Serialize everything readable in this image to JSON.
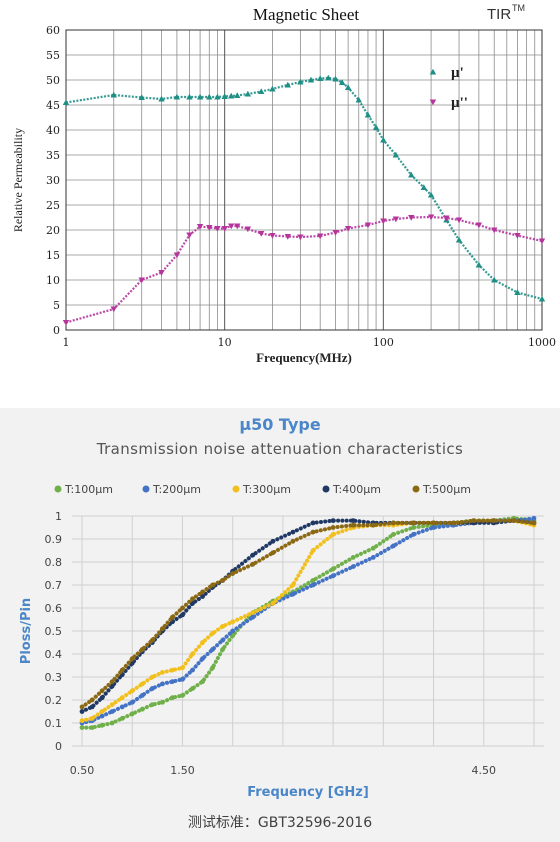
{
  "chart_data": [
    {
      "type": "scatter",
      "title": "Magnetic Sheet",
      "brand": "TIR",
      "brand_sup": "TM",
      "xlabel": "Frequency(MHz)",
      "ylabel": "Relative Permeability",
      "xscale": "log",
      "xlim": [
        1,
        1000
      ],
      "ylim": [
        0,
        60
      ],
      "xticks": [
        "1",
        "10",
        "100",
        "1000"
      ],
      "yticks": [
        "0",
        "5",
        "10",
        "15",
        "20",
        "25",
        "30",
        "35",
        "40",
        "45",
        "50",
        "55",
        "60"
      ],
      "grid": true,
      "legend_position": "top-right",
      "colors": {
        "mu1": "#1f8f86",
        "mu2": "#b5359c"
      },
      "series": [
        {
          "name": "µ'",
          "marker": "triangle-up",
          "x": [
            1,
            2,
            3,
            4,
            5,
            6,
            7,
            8,
            9,
            10,
            11,
            12,
            14,
            17,
            20,
            25,
            30,
            35,
            40,
            45,
            50,
            55,
            60,
            70,
            80,
            90,
            100,
            120,
            150,
            180,
            200,
            250,
            300,
            400,
            500,
            700,
            1000
          ],
          "y": [
            45.5,
            47,
            46.5,
            46.2,
            46.6,
            46.6,
            46.6,
            46.6,
            46.6,
            46.7,
            46.8,
            46.9,
            47.2,
            47.7,
            48.2,
            49.0,
            49.6,
            50.0,
            50.3,
            50.4,
            50.2,
            49.5,
            48.5,
            46,
            43,
            40.5,
            38,
            35,
            31,
            28.5,
            27,
            22,
            18,
            13,
            10,
            7.5,
            6.2
          ]
        },
        {
          "name": "µ''",
          "marker": "triangle-down",
          "x": [
            1,
            2,
            3,
            4,
            5,
            6,
            7,
            8,
            9,
            10,
            11,
            12,
            14,
            17,
            20,
            25,
            30,
            40,
            50,
            60,
            80,
            100,
            120,
            150,
            200,
            250,
            300,
            400,
            500,
            700,
            1000
          ],
          "y": [
            1.5,
            4.2,
            10,
            11.5,
            15,
            19,
            20.7,
            20.5,
            20.3,
            20.3,
            20.8,
            20.8,
            20.2,
            19.3,
            18.9,
            18.7,
            18.6,
            18.8,
            19.5,
            20.3,
            21,
            21.8,
            22.2,
            22.5,
            22.6,
            22.4,
            22,
            21,
            20,
            18.9,
            17.8
          ]
        }
      ]
    },
    {
      "type": "scatter",
      "title": "µ50 Type",
      "subtitle": "Transmission  noise  attenuation  characteristics",
      "xlabel": "Frequency [GHz]",
      "ylabel": "Ploss/Pin",
      "xlim": [
        0.4,
        5.1
      ],
      "ylim": [
        0,
        1
      ],
      "xticks": [
        "0.50",
        "1.50",
        "4.50"
      ],
      "xtick_values": [
        0.5,
        1.5,
        4.5
      ],
      "yticks": [
        "0",
        "0.1",
        "0.2",
        "0.3",
        "0.4",
        "0.5",
        "0.6",
        "0.7",
        "0.8",
        "0.9",
        "1"
      ],
      "grid": true,
      "legend_position": "top",
      "series": [
        {
          "name": "T:100µm",
          "color": "#70b04a",
          "x": [
            0.5,
            0.6,
            0.7,
            0.8,
            0.9,
            1.0,
            1.1,
            1.2,
            1.3,
            1.4,
            1.5,
            1.6,
            1.7,
            1.8,
            1.9,
            2.0,
            2.2,
            2.4,
            2.6,
            2.8,
            3.0,
            3.2,
            3.4,
            3.6,
            3.8,
            4.0,
            4.2,
            4.4,
            4.6,
            4.8,
            5.0
          ],
          "y": [
            0.08,
            0.08,
            0.09,
            0.1,
            0.12,
            0.14,
            0.16,
            0.18,
            0.19,
            0.21,
            0.22,
            0.25,
            0.28,
            0.34,
            0.42,
            0.48,
            0.58,
            0.63,
            0.67,
            0.72,
            0.77,
            0.82,
            0.86,
            0.92,
            0.95,
            0.96,
            0.97,
            0.98,
            0.98,
            0.99,
            0.98
          ]
        },
        {
          "name": "T:200µm",
          "color": "#4472c4",
          "x": [
            0.5,
            0.6,
            0.7,
            0.8,
            0.9,
            1.0,
            1.1,
            1.2,
            1.3,
            1.4,
            1.5,
            1.6,
            1.7,
            1.8,
            1.9,
            2.0,
            2.2,
            2.4,
            2.6,
            2.8,
            3.0,
            3.2,
            3.4,
            3.6,
            3.8,
            4.0,
            4.2,
            4.4,
            4.6,
            4.8,
            5.0
          ],
          "y": [
            0.1,
            0.11,
            0.13,
            0.15,
            0.17,
            0.19,
            0.22,
            0.25,
            0.27,
            0.28,
            0.29,
            0.33,
            0.38,
            0.42,
            0.46,
            0.5,
            0.56,
            0.62,
            0.66,
            0.7,
            0.74,
            0.78,
            0.82,
            0.87,
            0.92,
            0.95,
            0.96,
            0.97,
            0.98,
            0.98,
            0.99
          ]
        },
        {
          "name": "T:300µm",
          "color": "#f2c01e",
          "x": [
            0.5,
            0.6,
            0.7,
            0.8,
            0.9,
            1.0,
            1.1,
            1.2,
            1.3,
            1.4,
            1.5,
            1.6,
            1.7,
            1.8,
            1.9,
            2.0,
            2.2,
            2.4,
            2.6,
            2.8,
            3.0,
            3.2,
            3.4,
            3.6,
            3.8,
            4.0,
            4.2,
            4.4,
            4.6,
            4.8,
            5.0
          ],
          "y": [
            0.11,
            0.12,
            0.15,
            0.18,
            0.21,
            0.24,
            0.27,
            0.3,
            0.32,
            0.33,
            0.34,
            0.4,
            0.45,
            0.49,
            0.52,
            0.54,
            0.58,
            0.62,
            0.7,
            0.85,
            0.92,
            0.95,
            0.96,
            0.96,
            0.97,
            0.97,
            0.97,
            0.97,
            0.98,
            0.98,
            0.96
          ]
        },
        {
          "name": "T:400µm",
          "color": "#1f3864",
          "x": [
            0.5,
            0.6,
            0.7,
            0.8,
            0.9,
            1.0,
            1.1,
            1.2,
            1.3,
            1.4,
            1.5,
            1.6,
            1.7,
            1.8,
            1.9,
            2.0,
            2.2,
            2.4,
            2.6,
            2.8,
            3.0,
            3.2,
            3.4,
            3.6,
            3.8,
            4.0,
            4.2,
            4.4,
            4.6,
            4.8,
            5.0
          ],
          "y": [
            0.15,
            0.17,
            0.21,
            0.26,
            0.31,
            0.36,
            0.41,
            0.45,
            0.5,
            0.54,
            0.57,
            0.62,
            0.65,
            0.69,
            0.72,
            0.76,
            0.83,
            0.89,
            0.93,
            0.97,
            0.98,
            0.98,
            0.97,
            0.97,
            0.97,
            0.97,
            0.97,
            0.97,
            0.97,
            0.98,
            0.97
          ]
        },
        {
          "name": "T:500µm",
          "color": "#8b6914",
          "x": [
            0.5,
            0.6,
            0.7,
            0.8,
            0.9,
            1.0,
            1.1,
            1.2,
            1.3,
            1.4,
            1.5,
            1.6,
            1.7,
            1.8,
            1.9,
            2.0,
            2.2,
            2.4,
            2.6,
            2.8,
            3.0,
            3.2,
            3.4,
            3.6,
            3.8,
            4.0,
            4.2,
            4.4,
            4.6,
            4.8,
            5.0
          ],
          "y": [
            0.17,
            0.2,
            0.24,
            0.28,
            0.33,
            0.38,
            0.42,
            0.46,
            0.51,
            0.56,
            0.6,
            0.64,
            0.67,
            0.7,
            0.72,
            0.75,
            0.79,
            0.84,
            0.89,
            0.93,
            0.95,
            0.96,
            0.96,
            0.97,
            0.97,
            0.97,
            0.97,
            0.98,
            0.98,
            0.98,
            0.97
          ]
        }
      ]
    }
  ],
  "caption": "测试标准：GBT32596-2016"
}
